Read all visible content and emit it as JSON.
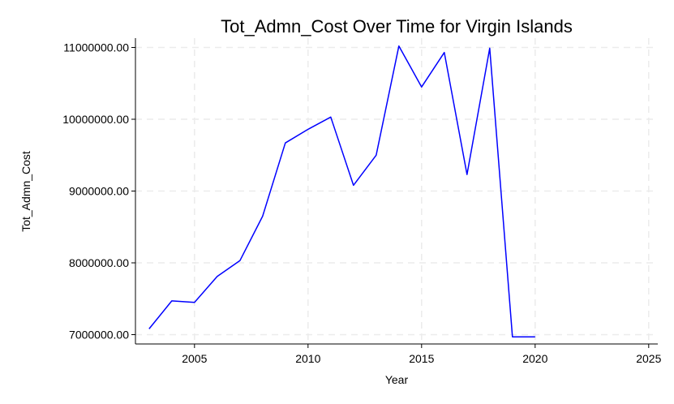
{
  "chart_data": {
    "type": "line",
    "title": "Tot_Admn_Cost Over Time for Virgin Islands",
    "xlabel": "Year",
    "ylabel": "Tot_Admn_Cost",
    "xlim": [
      2002.4,
      2025.4
    ],
    "ylim": [
      6870000,
      11130000
    ],
    "xticks": [
      2005,
      2010,
      2015,
      2020,
      2025
    ],
    "xtick_labels": [
      "2005",
      "2010",
      "2015",
      "2020",
      "2025"
    ],
    "yticks": [
      7000000,
      8000000,
      9000000,
      10000000,
      11000000
    ],
    "ytick_labels": [
      "7000000.00",
      "8000000.00",
      "9000000.00",
      "10000000.00",
      "11000000.00"
    ],
    "grid": true,
    "series": [
      {
        "color": "#0000ff",
        "x": [
          2003,
          2004,
          2005,
          2006,
          2007,
          2008,
          2009,
          2010,
          2011,
          2012,
          2013,
          2014,
          2015,
          2016,
          2017,
          2018,
          2019,
          2020
        ],
        "y": [
          7080000,
          7470000,
          7450000,
          7810000,
          8030000,
          8650000,
          9670000,
          9860000,
          10030000,
          9080000,
          9500000,
          11020000,
          10450000,
          10930000,
          9230000,
          10990000,
          6970000,
          6970000
        ]
      }
    ]
  }
}
